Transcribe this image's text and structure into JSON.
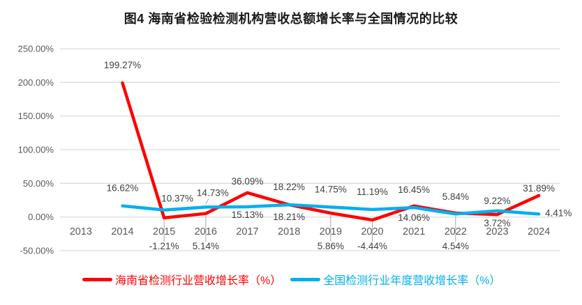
{
  "title": "图4 海南省检验检测机构营收总额增长率与全国情况的比较",
  "chart_data": {
    "type": "line",
    "categories": [
      "2013",
      "2014",
      "2015",
      "2016",
      "2017",
      "2018",
      "2019",
      "2020",
      "2021",
      "2022",
      "2023",
      "2024"
    ],
    "series": [
      {
        "name": "海南省检测行业营收增长率（%）",
        "color": "#ff0000",
        "values": [
          null,
          199.27,
          -1.21,
          5.14,
          36.09,
          18.21,
          5.86,
          -4.44,
          16.45,
          5.84,
          3.72,
          31.89
        ],
        "label_placement": [
          null,
          "above:-21",
          "callout-below",
          "callout-below",
          "above:-12",
          "below:22",
          "callout-below",
          "callout-below",
          "above:-19",
          "above:-19",
          "below:17",
          "above:-6"
        ]
      },
      {
        "name": "全国检测行业年度营收增长率（%）",
        "color": "#00b0f0",
        "values": [
          null,
          16.62,
          10.37,
          14.73,
          15.13,
          18.22,
          14.75,
          11.19,
          14.06,
          4.54,
          9.22,
          4.41
        ],
        "label_placement": [
          null,
          "above:-21",
          "above:-12:19",
          "above-leader",
          "below:16",
          "above:-21",
          "above:-21",
          "above:-21",
          "below:19",
          "callout-below",
          "above:-10",
          "right"
        ]
      }
    ],
    "ylim": [
      -50,
      250
    ],
    "ytick_step": 50,
    "yticks": [
      "250.00%",
      "200.00%",
      "150.00%",
      "100.00%",
      "50.00%",
      "0.00%",
      "-50.00%"
    ],
    "value_format": "percent-2-decimals",
    "grid": true,
    "legend_position": "bottom",
    "colors": {
      "gridline": "#dcdcdc",
      "axis_text": "#595959",
      "label_text": "#404040",
      "leader_line": "#a6a6a6"
    }
  }
}
